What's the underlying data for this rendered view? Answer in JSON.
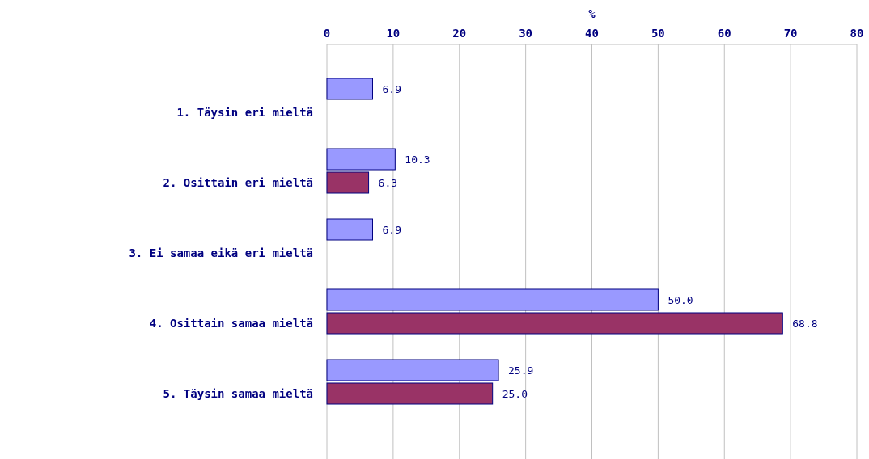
{
  "chart_data": {
    "type": "bar",
    "orientation": "horizontal",
    "xlabel": "%",
    "categories": [
      "1. Täysin eri mieltä",
      "2. Osittain eri mieltä",
      "3. Ei samaa eikä eri mieltä",
      "4. Osittain samaa mieltä",
      "5. Täysin samaa mieltä"
    ],
    "series": [
      {
        "color": "#9999ff",
        "values": [
          6.9,
          10.3,
          6.9,
          50.0,
          25.9
        ],
        "value_labels": [
          "6.9",
          "10.3",
          "6.9",
          "50.0",
          "25.9"
        ]
      },
      {
        "color": "#993366",
        "values": [
          null,
          6.3,
          null,
          68.8,
          25.0
        ],
        "value_labels": [
          null,
          "6.3",
          null,
          "68.8",
          "25.0"
        ]
      }
    ],
    "xlim": [
      0,
      80
    ],
    "xticks": [
      0,
      10,
      20,
      30,
      40,
      50,
      60,
      70,
      80
    ],
    "grid": "x"
  }
}
